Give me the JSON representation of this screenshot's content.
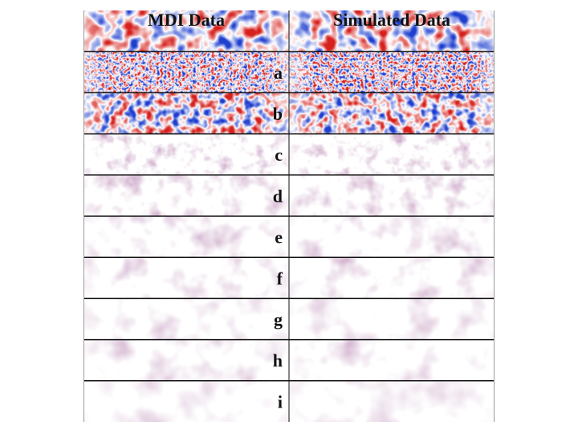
{
  "figure": {
    "columns": [
      {
        "key": "mdi",
        "header": "MDI Data"
      },
      {
        "key": "sim",
        "header": "Simulated Data"
      }
    ],
    "rows": [
      {
        "label": "",
        "style": "diverging",
        "scale": 6
      },
      {
        "label": "a",
        "style": "diverging",
        "scale": 22
      },
      {
        "label": "b",
        "style": "diverging",
        "scale": 9
      },
      {
        "label": "c",
        "style": "purple",
        "scale": 6
      },
      {
        "label": "d",
        "style": "purple",
        "scale": 4
      },
      {
        "label": "e",
        "style": "purple",
        "scale": 3
      },
      {
        "label": "f",
        "style": "purple",
        "scale": 3
      },
      {
        "label": "g",
        "style": "purple",
        "scale": 2.5
      },
      {
        "label": "h",
        "style": "purple",
        "scale": 2.5
      },
      {
        "label": "i",
        "style": "purple",
        "scale": 2
      }
    ],
    "colors": {
      "diverging_negative": "#1f3fd0",
      "diverging_positive": "#d6211e",
      "purple": "#7a1a70",
      "background": "#ffffff",
      "grid_line": "#111111"
    }
  }
}
